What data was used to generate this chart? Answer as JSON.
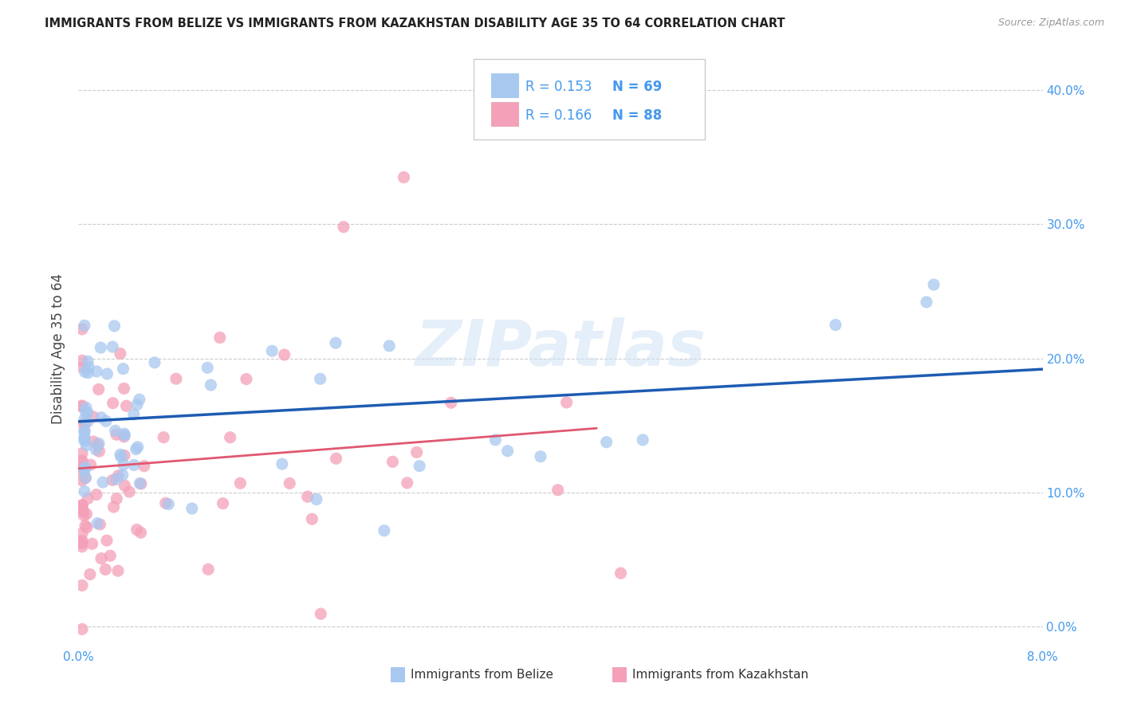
{
  "title": "IMMIGRANTS FROM BELIZE VS IMMIGRANTS FROM KAZAKHSTAN DISABILITY AGE 35 TO 64 CORRELATION CHART",
  "source": "Source: ZipAtlas.com",
  "ylabel_label": "Disability Age 35 to 64",
  "xlim": [
    0.0,
    0.08
  ],
  "ylim": [
    -0.015,
    0.43
  ],
  "yticks": [
    0.0,
    0.1,
    0.2,
    0.3,
    0.4
  ],
  "xticks": [
    0.0,
    0.02,
    0.04,
    0.06,
    0.08
  ],
  "legend_belize_R": "R = 0.153",
  "legend_belize_N": "N = 69",
  "legend_kaz_R": "R = 0.166",
  "legend_kaz_N": "N = 88",
  "color_belize": "#a8c8f0",
  "color_kaz": "#f4a0b8",
  "color_belize_line": "#1e5cb3",
  "color_kaz_line": "#e05870",
  "watermark": "ZIPatlas",
  "belize_line_x0": 0.0,
  "belize_line_y0": 0.153,
  "belize_line_x1": 0.08,
  "belize_line_y1": 0.192,
  "kaz_line_x0": 0.0,
  "kaz_line_y0": 0.118,
  "kaz_line_x1": 0.043,
  "kaz_line_y1": 0.148,
  "scatter_seed": 77
}
